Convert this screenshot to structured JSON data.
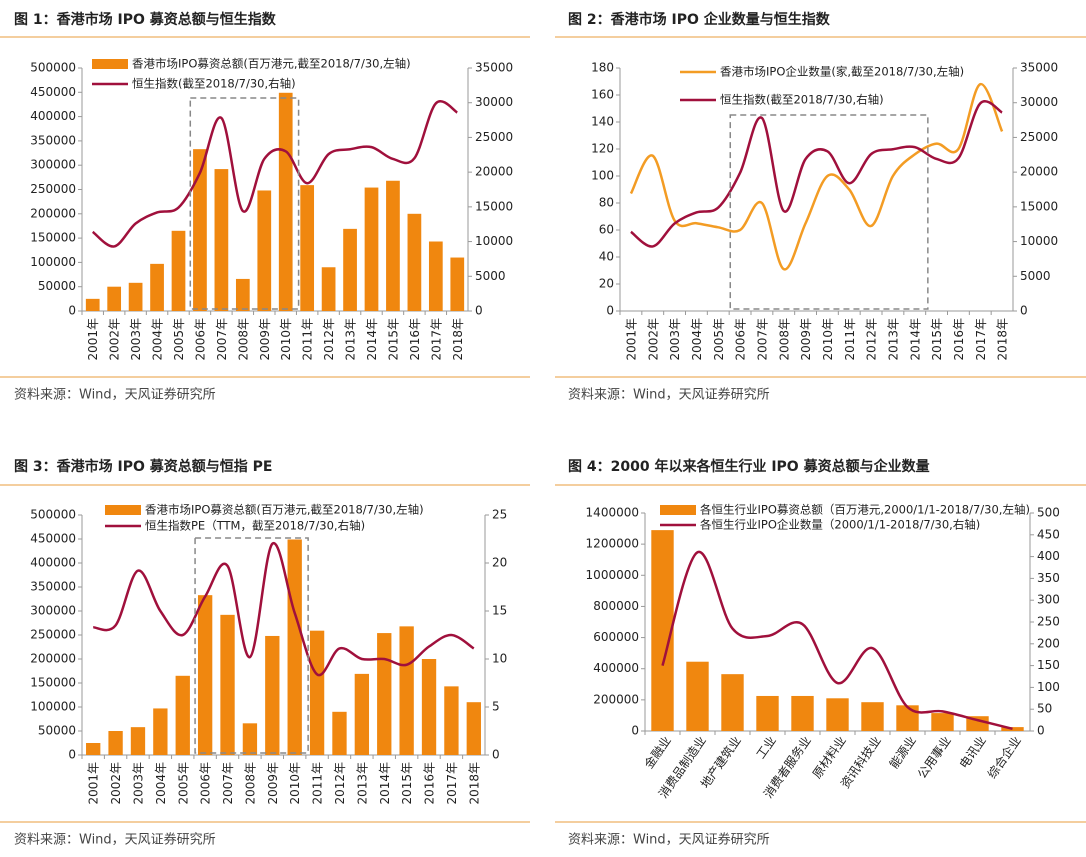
{
  "chart_data": [
    {
      "type": "combo",
      "title": "图 1：香港市场 IPO 募资总额与恒生指数",
      "source": "资料来源：Wind，天风证券研究所",
      "categories": [
        "2001年",
        "2002年",
        "2003年",
        "2004年",
        "2005年",
        "2006年",
        "2007年",
        "2008年",
        "2009年",
        "2010年",
        "2011年",
        "2012年",
        "2013年",
        "2014年",
        "2015年",
        "2016年",
        "2017年",
        "2018年"
      ],
      "series": [
        {
          "name": "香港市场IPO募资总额(百万港元,截至2018/7/30,左轴)",
          "kind": "bar",
          "color": "#f0870f",
          "values": [
            25000,
            50000,
            58000,
            97000,
            165000,
            333000,
            292000,
            66000,
            248000,
            449000,
            259000,
            90000,
            169000,
            254000,
            268000,
            200000,
            143000,
            110000
          ]
        },
        {
          "name": "恒生指数(截至2018/7/30,右轴)",
          "kind": "line",
          "axis": "y2",
          "color": "#a0103c",
          "values": [
            11400,
            9300,
            12600,
            14200,
            14900,
            19900,
            27800,
            14400,
            21900,
            23000,
            18400,
            22600,
            23300,
            23600,
            21900,
            22000,
            29900,
            28600
          ]
        }
      ],
      "ylim": [
        0,
        500000
      ],
      "yticks": [
        0,
        50000,
        100000,
        150000,
        200000,
        250000,
        300000,
        350000,
        400000,
        450000,
        500000
      ],
      "y2lim": [
        0,
        35000
      ],
      "y2ticks": [
        0,
        5000,
        10000,
        15000,
        20000,
        25000,
        30000,
        35000
      ]
    },
    {
      "type": "combo",
      "title": "图 2：香港市场 IPO 企业数量与恒生指数",
      "source": "资料来源：Wind，天风证券研究所",
      "categories": [
        "2001年",
        "2002年",
        "2003年",
        "2004年",
        "2005年",
        "2006年",
        "2007年",
        "2008年",
        "2009年",
        "2010年",
        "2011年",
        "2012年",
        "2013年",
        "2014年",
        "2015年",
        "2016年",
        "2017年",
        "2018年"
      ],
      "series": [
        {
          "name": "香港市场IPO企业数量(家,截至2018/7/30,左轴)",
          "kind": "line",
          "color": "#f39c24",
          "values": [
            87,
            115,
            67,
            65,
            62,
            60,
            80,
            31,
            65,
            100,
            90,
            63,
            100,
            116,
            124,
            120,
            168,
            133
          ]
        },
        {
          "name": "恒生指数(截至2018/7/30,右轴)",
          "kind": "line",
          "axis": "y2",
          "color": "#a0103c",
          "values": [
            11400,
            9300,
            12600,
            14200,
            14900,
            19900,
            27800,
            14400,
            21900,
            23000,
            18400,
            22600,
            23300,
            23600,
            21900,
            22000,
            29900,
            28600
          ]
        }
      ],
      "ylim": [
        0,
        180
      ],
      "yticks": [
        0,
        20,
        40,
        60,
        80,
        100,
        120,
        140,
        160,
        180
      ],
      "y2lim": [
        0,
        35000
      ],
      "y2ticks": [
        0,
        5000,
        10000,
        15000,
        20000,
        25000,
        30000,
        35000
      ]
    },
    {
      "type": "combo",
      "title": "图 3：香港市场 IPO 募资总额与恒指 PE",
      "source": "资料来源：Wind，天风证券研究所",
      "categories": [
        "2001年",
        "2002年",
        "2003年",
        "2004年",
        "2005年",
        "2006年",
        "2007年",
        "2008年",
        "2009年",
        "2010年",
        "2011年",
        "2012年",
        "2013年",
        "2014年",
        "2015年",
        "2016年",
        "2017年",
        "2018年"
      ],
      "series": [
        {
          "name": "香港市场IPO募资总额(百万港元,截至2018/7/30,左轴)",
          "kind": "bar",
          "color": "#f0870f",
          "values": [
            25000,
            50000,
            58000,
            97000,
            165000,
            333000,
            292000,
            66000,
            248000,
            449000,
            259000,
            90000,
            169000,
            254000,
            268000,
            200000,
            143000,
            110000
          ]
        },
        {
          "name": "恒生指数PE（TTM，截至2018/7/30,右轴)",
          "kind": "line",
          "axis": "y2",
          "color": "#a0103c",
          "values": [
            13.3,
            13.5,
            19.2,
            15,
            12.5,
            16.5,
            19.7,
            10.2,
            22,
            14.8,
            8.4,
            11.1,
            10,
            10,
            9.4,
            11.3,
            12.5,
            11.1
          ]
        }
      ],
      "ylim": [
        0,
        500000
      ],
      "yticks": [
        0,
        50000,
        100000,
        150000,
        200000,
        250000,
        300000,
        350000,
        400000,
        450000,
        500000
      ],
      "y2lim": [
        0,
        25
      ],
      "y2ticks": [
        0,
        5,
        10,
        15,
        20,
        25
      ]
    },
    {
      "type": "combo",
      "title": "图 4：2000 年以来各恒生行业 IPO 募资总额与企业数量",
      "source": "资料来源：Wind，天风证券研究所",
      "categories": [
        "金融业",
        "消费品制造业",
        "地产建筑业",
        "工业",
        "消费者服务业",
        "原材料业",
        "资讯科技业",
        "能源业",
        "公用事业",
        "电讯业",
        "综合企业"
      ],
      "series": [
        {
          "name": "各恒生行业IPO募资总额（百万港元,2000/1/1-2018/7/30,左轴)",
          "kind": "bar",
          "color": "#f0870f",
          "values": [
            1290000,
            445000,
            365000,
            225000,
            225000,
            210000,
            185000,
            165000,
            115000,
            95000,
            25000
          ]
        },
        {
          "name": "各恒生行业IPO企业数量（2000/1/1-2018/7/30,右轴)",
          "kind": "line",
          "axis": "y2",
          "color": "#a0103c",
          "values": [
            150,
            410,
            235,
            218,
            245,
            110,
            190,
            55,
            45,
            25,
            5
          ]
        }
      ],
      "ylim": [
        0,
        1400000
      ],
      "yticks": [
        0,
        200000,
        400000,
        600000,
        800000,
        1000000,
        1200000,
        1400000
      ],
      "y2lim": [
        0,
        500
      ],
      "y2ticks": [
        0,
        50,
        100,
        150,
        200,
        250,
        300,
        350,
        400,
        450,
        500
      ]
    }
  ]
}
